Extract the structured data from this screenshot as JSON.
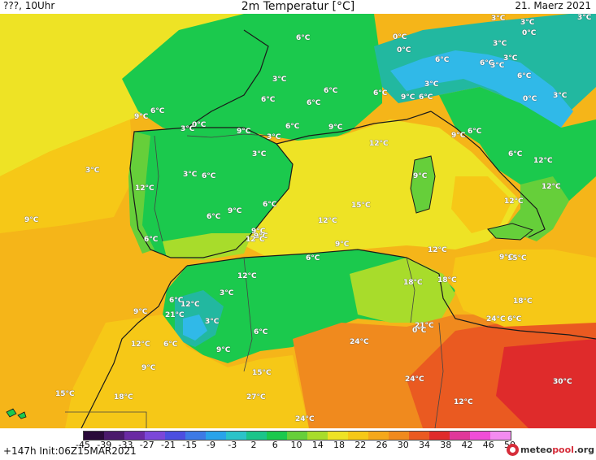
{
  "header": {
    "left": "???, 10Uhr",
    "title": "2m Temperatur [°C]",
    "date": "21. Maerz 2021"
  },
  "footer": {
    "run": "+147h Init:06Z15MAR2021",
    "logo_text_a": "meteo",
    "logo_text_b": "pool",
    "logo_text_c": ".org"
  },
  "colors": {
    "sea_far": "#f5b519",
    "sea_warm": "#f6c817",
    "med_sea": "#eee325",
    "land_cool": "#1bc94d",
    "land_mild": "#7ed23d",
    "land_cold": "#22b8a0",
    "snow": "#30b9e8",
    "africa_hot": "#f08a1e",
    "africa_hotter": "#ea5a21",
    "sahara_peak": "#df2b2b",
    "coast_line": "#1a1a1a",
    "border_line": "#444444"
  },
  "legend": {
    "ticks": [
      "-45",
      "-39",
      "-33",
      "-27",
      "-21",
      "-15",
      "-9",
      "-3",
      "2",
      "6",
      "10",
      "14",
      "18",
      "22",
      "26",
      "30",
      "34",
      "38",
      "42",
      "46",
      "50"
    ],
    "colors": [
      "#2a0a3a",
      "#4b1a6c",
      "#6a2aa3",
      "#7b47d9",
      "#4c4fe0",
      "#3d7ae6",
      "#29a3ea",
      "#2bc3c9",
      "#1bc58a",
      "#1bc94d",
      "#66cf3a",
      "#a8dc2b",
      "#eee325",
      "#f6c817",
      "#f5a81b",
      "#f08a1e",
      "#ea5a21",
      "#df2b2b",
      "#e0379a",
      "#f04dd8",
      "#f38bf0"
    ]
  },
  "temperature_labels": [
    "3°C",
    "3°C",
    "3°C",
    "0°C",
    "6°C",
    "0°C",
    "3°C",
    "0°C",
    "3°C",
    "6°C",
    "6°C",
    "3°C",
    "3°C",
    "6°C",
    "3°C",
    "6°C",
    "6°C",
    "9°C",
    "6°C",
    "6°C",
    "6°C",
    "0°C",
    "3°C",
    "6°C",
    "0°C",
    "3°C",
    "9°C",
    "6°C",
    "9°C",
    "9°C",
    "9°C",
    "6°C",
    "3°C",
    "12°C",
    "3°C",
    "6°C",
    "3°C",
    "12°C",
    "9°C",
    "6°C",
    "3°C",
    "12°C",
    "12°C",
    "9°C",
    "6°C",
    "9°C",
    "6°C",
    "12°C",
    "15°C",
    "9°C",
    "12°C",
    "12°C",
    "6°C",
    "9°C",
    "9°C",
    "15°C",
    "12°C",
    "18°C",
    "18°C",
    "9°C",
    "6°C",
    "3°C",
    "6°C",
    "12°C",
    "18°C",
    "12°C",
    "9°C",
    "3°C",
    "24°C",
    "21°C",
    "6°C",
    "21°C",
    "0°C",
    "12°C",
    "6°C",
    "9°C",
    "6°C",
    "24°C",
    "9°C",
    "15°C",
    "24°C",
    "30°C",
    "15°C",
    "18°C",
    "27°C",
    "12°C",
    "24°C"
  ]
}
